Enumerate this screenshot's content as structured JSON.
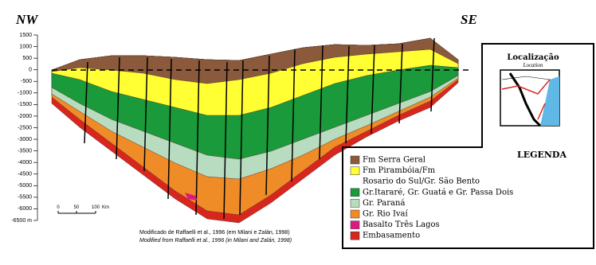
{
  "header": {
    "left": "NW",
    "right": "SE"
  },
  "depth_labels": [
    "1500",
    "1000",
    "500",
    "0",
    "-500",
    "-1000",
    "-1500",
    "-2000",
    "-2500",
    "-3000",
    "-3500",
    "-4000",
    "-4500",
    "-5000",
    "-5500",
    "-6000",
    "-6500 m"
  ],
  "scale_labels": [
    "0",
    "50",
    "100",
    "Km"
  ],
  "caption": {
    "pt": "Modificado de Raffaelli et al., 1996 (em Milani e Zalán, 1998)",
    "en": "Modified from Raffaelli et al., 1996 (in Milani and Zalán, 1998)"
  },
  "location": {
    "title": "Localização",
    "subtitle": "Location"
  },
  "legend": {
    "title": "LEGENDA",
    "items": [
      {
        "label": "Fm Serra Geral",
        "color": "#8b5a3c"
      },
      {
        "label": "Fm Pirambóia/Fm",
        "color": "#ffff33"
      },
      {
        "label": "Rosario do Sul/Gr. São Bento"
      },
      {
        "label": "Gr.Itararé, Gr. Guatá e Gr. Passa Dois",
        "color": "#1a9a3a"
      },
      {
        "label": "Gr. Paraná",
        "color": "#b8dcc0"
      },
      {
        "label": "Gr. Rio Ivaí",
        "color": "#f08c28"
      },
      {
        "label": "Basalto Três Lagos",
        "color": "#e0197d"
      },
      {
        "label": "Embasamento",
        "color": "#d8261e"
      }
    ]
  }
}
